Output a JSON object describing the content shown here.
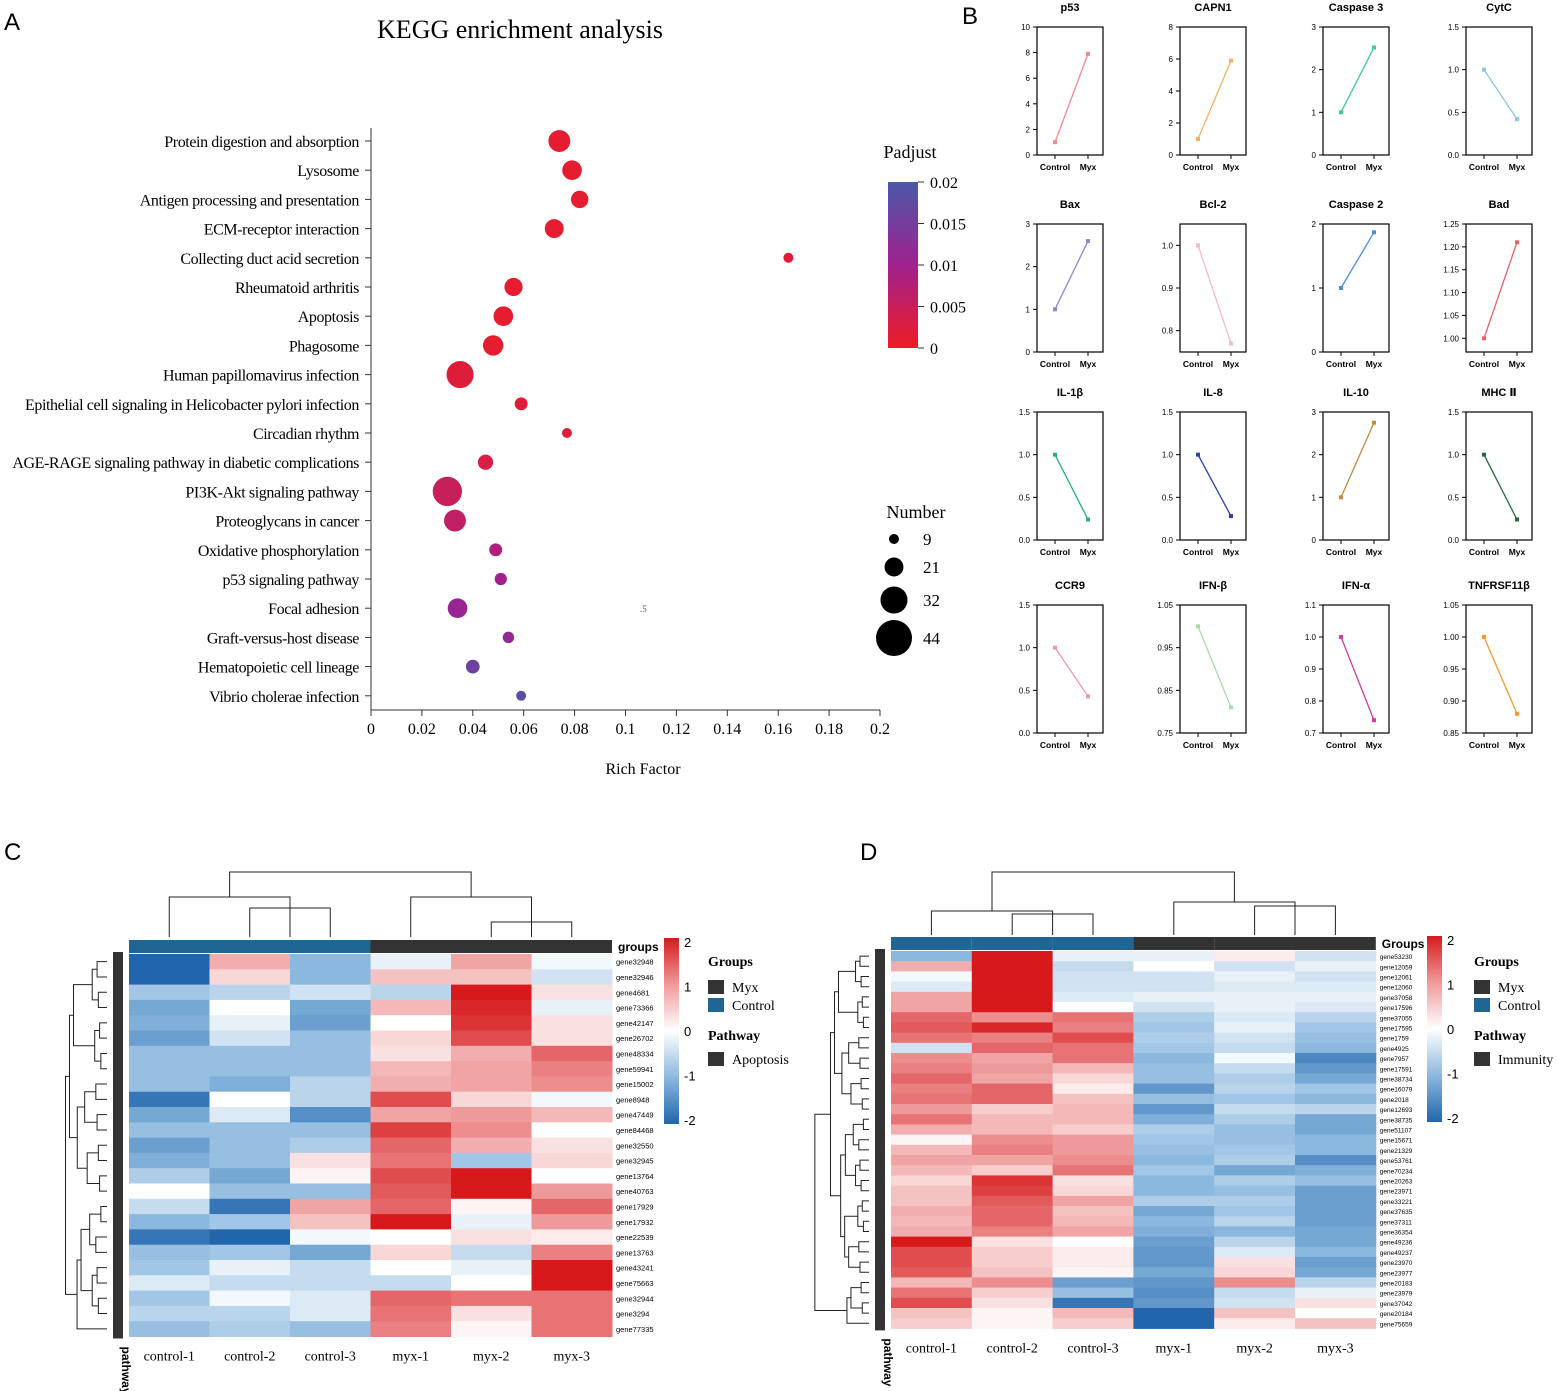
{
  "panel_labels": {
    "a": "A",
    "b": "B",
    "c": "C",
    "d": "D"
  },
  "chart_data": [
    {
      "type": "scatter",
      "subtype": "bubble",
      "title": "KEGG enrichment analysis",
      "xlabel": "Rich Factor",
      "xlim": [
        0,
        0.2
      ],
      "xticks": [
        "0",
        "0.02",
        "0.04",
        "0.06",
        "0.08",
        "0.1",
        "0.12",
        "0.14",
        "0.16",
        "0.18",
        "0.2"
      ],
      "stray_text": ".5",
      "color_legend": {
        "title": "Padjust",
        "ticks": [
          "0.02",
          "0.015",
          "0.01",
          "0.005",
          "0"
        ],
        "low_color": "#ee1c25",
        "mid_color": "#a0218f",
        "high_color": "#4a58a8"
      },
      "size_legend": {
        "title": "Number",
        "values": [
          "9",
          "21",
          "32",
          "44"
        ]
      },
      "pathways": [
        "Protein digestion and absorption",
        "Lysosome",
        "Antigen processing and presentation",
        "ECM-receptor interaction",
        "Collecting duct acid secretion",
        "Rheumatoid arthritis",
        "Apoptosis",
        "Phagosome",
        "Human papillomavirus infection",
        "Epithelial cell signaling in Helicobacter pylori infection",
        "Circadian rhythm",
        "AGE-RAGE signaling pathway in diabetic complications",
        "PI3K-Akt signaling pathway",
        "Proteoglycans in cancer",
        "Oxidative phosphorylation",
        "p53 signaling pathway",
        "Focal adhesion",
        "Graft-versus-host disease",
        "Hematopoietic cell lineage",
        "Vibrio cholerae infection"
      ],
      "rich_factor": [
        0.074,
        0.079,
        0.082,
        0.072,
        0.164,
        0.056,
        0.052,
        0.048,
        0.035,
        0.059,
        0.077,
        0.045,
        0.03,
        0.033,
        0.049,
        0.051,
        0.034,
        0.054,
        0.04,
        0.059
      ],
      "number": [
        25,
        22,
        19,
        21,
        9,
        20,
        22,
        23,
        32,
        13,
        9,
        16,
        35,
        25,
        13,
        12,
        22,
        11,
        14,
        9
      ],
      "padjust": [
        0.001,
        0.001,
        0.001,
        0.001,
        0.002,
        0.001,
        0.001,
        0.001,
        0.002,
        0.002,
        0.002,
        0.003,
        0.005,
        0.006,
        0.008,
        0.01,
        0.011,
        0.012,
        0.016,
        0.018
      ]
    },
    {
      "type": "line",
      "categories": [
        "Control",
        "Myx"
      ],
      "subplots": [
        {
          "title": "p53",
          "values": [
            1,
            7.9
          ],
          "ylim": [
            0,
            10
          ],
          "yticks": [
            "0",
            "2",
            "4",
            "6",
            "8",
            "10"
          ],
          "color": "#f28b8b"
        },
        {
          "title": "CAPN1",
          "values": [
            1,
            5.9
          ],
          "ylim": [
            0,
            8
          ],
          "yticks": [
            "0",
            "2",
            "4",
            "6",
            "8"
          ],
          "color": "#f5b066"
        },
        {
          "title": "Caspase 3",
          "values": [
            1,
            2.52
          ],
          "ylim": [
            0,
            3
          ],
          "yticks": [
            "0",
            "1",
            "2",
            "3"
          ],
          "color": "#3ec8a0"
        },
        {
          "title": "CytC",
          "values": [
            1,
            0.42
          ],
          "ylim": [
            0,
            1.5
          ],
          "yticks": [
            "0.0",
            "0.5",
            "1.0",
            "1.5"
          ],
          "color": "#8cc4e8"
        },
        {
          "title": "Bax",
          "values": [
            1,
            2.6
          ],
          "ylim": [
            0,
            3
          ],
          "yticks": [
            "0",
            "1",
            "2",
            "3"
          ],
          "color": "#8a8ad0"
        },
        {
          "title": "Bcl-2",
          "values": [
            1,
            0.77
          ],
          "ylim": [
            0.75,
            1.05
          ],
          "yticks": [
            "0.8",
            "0.9",
            "1.0"
          ],
          "ytick_values": [
            0.8,
            0.9,
            1.0
          ],
          "color": "#f7b8c8"
        },
        {
          "title": "Caspase 2",
          "values": [
            1,
            1.87
          ],
          "ylim": [
            0,
            2
          ],
          "yticks": [
            "0",
            "1",
            "2"
          ],
          "color": "#4a8fd4"
        },
        {
          "title": "Bad",
          "values": [
            1,
            1.21
          ],
          "ylim": [
            0.97,
            1.25
          ],
          "yticks": [
            "1.00",
            "1.05",
            "1.10",
            "1.15",
            "1.20",
            "1.25"
          ],
          "color": "#f06060"
        },
        {
          "title": "IL-1β",
          "values": [
            1,
            0.24
          ],
          "ylim": [
            0,
            1.5
          ],
          "yticks": [
            "0.0",
            "0.5",
            "1.0",
            "1.5"
          ],
          "color": "#28b080"
        },
        {
          "title": "IL-8",
          "values": [
            1,
            0.28
          ],
          "ylim": [
            0,
            1.5
          ],
          "yticks": [
            "0.0",
            "0.5",
            "1.0",
            "1.5"
          ],
          "color": "#2a3fae"
        },
        {
          "title": "IL-10",
          "values": [
            1,
            2.75
          ],
          "ylim": [
            0,
            3
          ],
          "yticks": [
            "0",
            "1",
            "2",
            "3"
          ],
          "color": "#c08a40"
        },
        {
          "title": "MHC Ⅱ",
          "values": [
            1,
            0.24
          ],
          "ylim": [
            0,
            1.5
          ],
          "yticks": [
            "0.0",
            "0.5",
            "1.0",
            "1.5"
          ],
          "color": "#1e6e3a"
        },
        {
          "title": "CCR9",
          "values": [
            1,
            0.43
          ],
          "ylim": [
            0,
            1.5
          ],
          "yticks": [
            "0.0",
            "0.5",
            "1.0",
            "1.5"
          ],
          "color": "#f294b4"
        },
        {
          "title": "IFN-β",
          "values": [
            1,
            0.81
          ],
          "ylim": [
            0.75,
            1.05
          ],
          "yticks": [
            "0.75",
            "0.85",
            "0.95",
            "1.05"
          ],
          "ytick_values": [
            0.75,
            0.85,
            0.95,
            1.05
          ],
          "color": "#a6dca6"
        },
        {
          "title": "IFN-α",
          "values": [
            1,
            0.74
          ],
          "ylim": [
            0.7,
            1.1
          ],
          "yticks": [
            "0.7",
            "0.8",
            "0.9",
            "1.0",
            "1.1"
          ],
          "color": "#d23c9e"
        },
        {
          "title": "TNFRSF11β",
          "values": [
            1,
            0.88
          ],
          "ylim": [
            0.85,
            1.05
          ],
          "yticks": [
            "0.85",
            "0.90",
            "0.95",
            "1.00",
            "1.05"
          ],
          "color": "#f59a2a"
        }
      ]
    },
    {
      "type": "heatmap",
      "columns": [
        "control-1",
        "control-2",
        "control-3",
        "myx-1",
        "myx-2",
        "myx-3"
      ],
      "column_groups": [
        "Control",
        "Control",
        "Control",
        "Myx",
        "Myx",
        "Myx"
      ],
      "groups_annotation_label": "groups",
      "row_annotation_label": "pathway",
      "scale_ticks": [
        "2",
        "1",
        "0",
        "-1",
        "-2"
      ],
      "legend": {
        "groups_title": "Groups",
        "groups": [
          {
            "label": "Myx",
            "color": "#333333"
          },
          {
            "label": "Control",
            "color": "#1f6694"
          }
        ],
        "pathway_title": "Pathway",
        "pathway": [
          {
            "label": "Apoptosis",
            "color": "#333333"
          }
        ]
      },
      "rows": [
        "gene32948",
        "gene32946",
        "gene4681",
        "gene73366",
        "gene42147",
        "gene26702",
        "gene48334",
        "gene59941",
        "gene15002",
        "gene8948",
        "gene47449",
        "gene84468",
        "gene32550",
        "gene32945",
        "gene13764",
        "gene40763",
        "gene17929",
        "gene17932",
        "gene22539",
        "gene13763",
        "gene43241",
        "gene75663",
        "gene32944",
        "gene3294",
        "gene77335"
      ],
      "values": [
        [
          -2.0,
          0.8,
          -1.0,
          -0.2,
          0.9,
          -0.1
        ],
        [
          -2.0,
          0.4,
          -1.0,
          0.6,
          0.6,
          -0.4
        ],
        [
          -0.8,
          -0.6,
          -0.4,
          -0.6,
          2.0,
          0.3
        ],
        [
          -1.2,
          0.0,
          -1.2,
          0.7,
          1.9,
          -0.2
        ],
        [
          -1.1,
          -0.2,
          -1.3,
          0.0,
          1.8,
          0.3
        ],
        [
          -1.3,
          -0.4,
          -0.9,
          0.4,
          1.6,
          0.3
        ],
        [
          -0.9,
          -0.9,
          -0.9,
          0.3,
          0.8,
          1.4
        ],
        [
          -0.9,
          -0.9,
          -0.9,
          0.7,
          0.9,
          1.2
        ],
        [
          -0.9,
          -1.1,
          -0.6,
          0.8,
          0.9,
          1.1
        ],
        [
          -1.8,
          0.0,
          -0.6,
          1.6,
          0.4,
          -0.1
        ],
        [
          -1.2,
          -0.3,
          -1.5,
          0.9,
          1.0,
          0.7
        ],
        [
          -0.9,
          -0.9,
          -0.9,
          1.7,
          1.1,
          0.0
        ],
        [
          -1.3,
          -0.9,
          -0.7,
          1.4,
          0.8,
          0.3
        ],
        [
          -1.1,
          -0.9,
          0.3,
          1.3,
          -0.8,
          0.4
        ],
        [
          -0.7,
          -1.2,
          0.1,
          1.6,
          2.0,
          0.0
        ],
        [
          0.0,
          -0.9,
          -0.9,
          1.5,
          2.0,
          1.0
        ],
        [
          -0.5,
          -1.8,
          0.9,
          1.4,
          0.1,
          1.4
        ],
        [
          -1.0,
          -0.8,
          0.6,
          2.0,
          -0.2,
          1.0
        ],
        [
          -1.8,
          -2.0,
          -0.1,
          0.0,
          0.3,
          0.2
        ],
        [
          -0.9,
          -0.8,
          -1.2,
          0.4,
          -0.5,
          1.2
        ],
        [
          -0.8,
          -0.2,
          -0.5,
          0.0,
          -0.2,
          2.0
        ],
        [
          -0.3,
          -0.5,
          -0.5,
          -0.5,
          0.0,
          2.0
        ],
        [
          -0.8,
          -0.1,
          -0.3,
          1.4,
          1.3,
          1.3
        ],
        [
          -0.6,
          -0.6,
          -0.3,
          1.3,
          0.3,
          1.3
        ],
        [
          -0.9,
          -0.7,
          -0.9,
          1.2,
          0.1,
          1.3
        ]
      ]
    },
    {
      "type": "heatmap",
      "columns": [
        "control-1",
        "control-2",
        "control-3",
        "myx-1",
        "myx-2",
        "myx-3"
      ],
      "column_groups": [
        "Control",
        "Control",
        "Control",
        "Myx",
        "Myx",
        "Myx"
      ],
      "groups_annotation_label": "Groups",
      "row_annotation_label": "pathway",
      "scale_ticks": [
        "2",
        "1",
        "0",
        "-1",
        "-2"
      ],
      "legend": {
        "groups_title": "Groups",
        "groups": [
          {
            "label": "Myx",
            "color": "#333333"
          },
          {
            "label": "Control",
            "color": "#1f6694"
          }
        ],
        "pathway_title": "Pathway",
        "pathway": [
          {
            "label": "Immunity",
            "color": "#333333"
          }
        ]
      },
      "rows": [
        "gene53230",
        "gene12059",
        "gene12061",
        "gene12060",
        "gene37058",
        "gene17596",
        "gene37055",
        "gene17595",
        "gene1759",
        "gene4925",
        "gene7957",
        "gene17591",
        "gene38734",
        "gene16079",
        "gene2018",
        "gene12693",
        "gene38735",
        "gene51107",
        "gene15671",
        "gene21329",
        "gene53761",
        "gene70234",
        "gene20263",
        "gene23971",
        "gene33221",
        "gene37635",
        "gene37311",
        "gene36354",
        "gene49236",
        "gene49237",
        "gene23970",
        "gene23977",
        "gene20183",
        "gene23979",
        "gene37042",
        "gene20184",
        "gene75659"
      ],
      "values": [
        [
          -1.0,
          2.0,
          -0.2,
          -0.2,
          0.2,
          -0.4
        ],
        [
          0.8,
          2.0,
          -0.5,
          0.0,
          -0.4,
          -0.2
        ],
        [
          -0.1,
          2.0,
          -0.4,
          -0.4,
          -0.2,
          -0.4
        ],
        [
          -0.3,
          2.0,
          -0.4,
          -0.4,
          -0.3,
          -0.3
        ],
        [
          0.9,
          2.0,
          -0.3,
          -0.2,
          -0.2,
          -0.2
        ],
        [
          0.9,
          2.0,
          0.0,
          -0.4,
          -0.2,
          -0.3
        ],
        [
          1.4,
          1.1,
          1.3,
          -0.7,
          -0.3,
          -0.6
        ],
        [
          1.5,
          1.9,
          1.2,
          -0.8,
          -0.2,
          -0.8
        ],
        [
          1.3,
          1.2,
          1.6,
          -0.7,
          -0.4,
          -0.9
        ],
        [
          -0.4,
          1.4,
          1.3,
          -0.8,
          -0.5,
          -1.0
        ],
        [
          1.1,
          0.9,
          1.3,
          -1.0,
          -0.1,
          -1.6
        ],
        [
          1.2,
          1.0,
          0.7,
          -0.9,
          -0.5,
          -1.4
        ],
        [
          1.4,
          0.9,
          0.4,
          -0.9,
          -0.7,
          -1.2
        ],
        [
          1.2,
          1.4,
          0.2,
          -1.4,
          -0.6,
          -0.8
        ],
        [
          1.3,
          1.4,
          0.6,
          -0.9,
          -0.8,
          -1.0
        ],
        [
          1.0,
          0.5,
          0.7,
          -1.4,
          -0.5,
          -0.6
        ],
        [
          1.3,
          0.7,
          0.7,
          -1.1,
          -0.7,
          -1.2
        ],
        [
          0.8,
          0.7,
          0.5,
          -0.7,
          -0.9,
          -1.2
        ],
        [
          0.1,
          1.1,
          1.0,
          -0.8,
          -0.9,
          -1.0
        ],
        [
          0.7,
          1.2,
          1.0,
          -0.9,
          -0.8,
          -1.0
        ],
        [
          0.9,
          0.9,
          1.1,
          -1.0,
          -0.7,
          -1.5
        ],
        [
          0.7,
          0.5,
          1.3,
          -0.8,
          -1.2,
          -1.1
        ],
        [
          0.4,
          1.8,
          0.3,
          -1.0,
          -0.7,
          -0.9
        ],
        [
          0.6,
          1.7,
          0.4,
          -1.0,
          -0.9,
          -1.3
        ],
        [
          0.6,
          1.5,
          0.9,
          -0.7,
          -0.7,
          -1.3
        ],
        [
          0.8,
          1.4,
          0.6,
          -1.2,
          -0.8,
          -1.3
        ],
        [
          0.7,
          1.4,
          0.7,
          -1.0,
          -0.6,
          -1.3
        ],
        [
          0.8,
          1.2,
          0.9,
          -1.1,
          -1.0,
          -1.2
        ],
        [
          2.0,
          0.3,
          0.0,
          -1.3,
          -0.6,
          -1.2
        ],
        [
          1.6,
          0.5,
          0.2,
          -1.4,
          -0.3,
          -1.0
        ],
        [
          1.6,
          0.5,
          0.2,
          -1.4,
          0.3,
          -1.3
        ],
        [
          1.5,
          0.6,
          0.1,
          -1.2,
          0.4,
          -1.2
        ],
        [
          0.7,
          1.1,
          -1.3,
          -1.4,
          1.1,
          -0.6
        ],
        [
          1.3,
          0.5,
          -0.9,
          -1.5,
          -0.5,
          -0.2
        ],
        [
          1.6,
          0.3,
          -1.8,
          -1.4,
          -0.4,
          0.3
        ],
        [
          0.6,
          0.1,
          0.7,
          -2.0,
          0.6,
          0.0
        ],
        [
          0.5,
          0.1,
          0.5,
          -2.0,
          0.2,
          0.6
        ]
      ]
    }
  ]
}
